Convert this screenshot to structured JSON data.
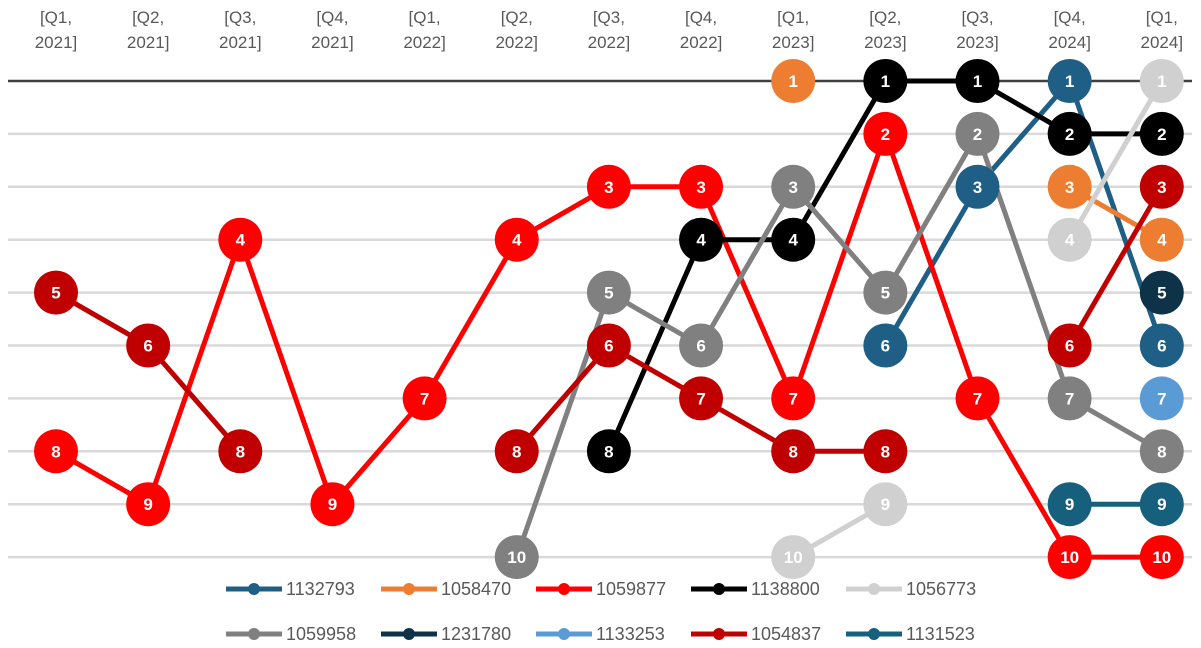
{
  "chart_data": {
    "type": "line",
    "subtype": "rank bump chart",
    "title": "",
    "xlabel": "",
    "ylabel": "",
    "x_axis_position": "top",
    "y_axis": {
      "reversed": true,
      "range": [
        1,
        10
      ]
    },
    "grid": true,
    "legend_position": "bottom",
    "categories": [
      "[Q1, 2021]",
      "[Q2, 2021]",
      "[Q3, 2021]",
      "[Q4, 2021]",
      "[Q1, 2022]",
      "[Q2, 2022]",
      "[Q3, 2022]",
      "[Q4, 2022]",
      "[Q1, 2023]",
      "[Q2, 2023]",
      "[Q3, 2023]",
      "[Q4, 2024]",
      "[Q1, 2024]"
    ],
    "series": [
      {
        "name": "1132793",
        "color": "#1f5f86",
        "values": [
          null,
          null,
          null,
          null,
          null,
          null,
          null,
          null,
          null,
          6,
          3,
          1,
          6
        ]
      },
      {
        "name": "1058470",
        "color": "#ed7d31",
        "values": [
          null,
          null,
          null,
          null,
          null,
          null,
          null,
          null,
          1,
          null,
          null,
          3,
          4
        ]
      },
      {
        "name": "1059877",
        "color": "#ff0000",
        "values": [
          8,
          9,
          4,
          9,
          7,
          4,
          3,
          3,
          7,
          2,
          7,
          10,
          10
        ]
      },
      {
        "name": "1138800",
        "color": "#000000",
        "values": [
          null,
          null,
          null,
          null,
          null,
          null,
          8,
          4,
          4,
          1,
          1,
          2,
          2
        ]
      },
      {
        "name": "1056773",
        "color": "#d0d0d0",
        "values": [
          null,
          null,
          null,
          null,
          null,
          null,
          null,
          null,
          10,
          9,
          null,
          4,
          1
        ]
      },
      {
        "name": "1059958",
        "color": "#808080",
        "values": [
          null,
          null,
          null,
          null,
          null,
          10,
          5,
          6,
          3,
          5,
          2,
          7,
          8
        ]
      },
      {
        "name": "1231780",
        "color": "#0e3349",
        "values": [
          null,
          null,
          null,
          null,
          null,
          null,
          null,
          null,
          null,
          null,
          null,
          null,
          5
        ]
      },
      {
        "name": "1133253",
        "color": "#5b9bd5",
        "values": [
          null,
          null,
          null,
          null,
          null,
          null,
          null,
          null,
          null,
          null,
          null,
          null,
          7
        ]
      },
      {
        "name": "1054837",
        "color": "#c00000",
        "values": [
          5,
          6,
          8,
          null,
          null,
          8,
          6,
          7,
          8,
          8,
          null,
          6,
          3
        ]
      },
      {
        "name": "1131523",
        "color": "#17607d",
        "values": [
          null,
          null,
          null,
          null,
          null,
          null,
          null,
          null,
          null,
          null,
          null,
          9,
          9
        ]
      }
    ]
  }
}
